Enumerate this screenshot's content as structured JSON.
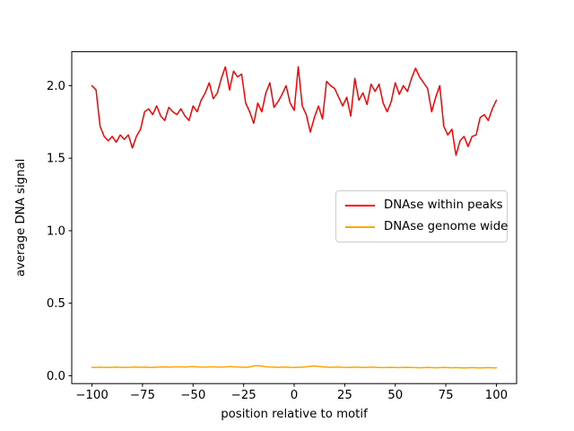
{
  "figure": {
    "background": "#ffffff"
  },
  "chart_data": {
    "type": "line",
    "title": "",
    "xlabel": "position relative to motif",
    "ylabel": "average DNA signal",
    "xlim": [
      -110,
      110
    ],
    "ylim": [
      -0.054,
      2.234
    ],
    "grid": false,
    "x_ticks": [
      {
        "v": -100,
        "label": "−100"
      },
      {
        "v": -75,
        "label": "−75"
      },
      {
        "v": -50,
        "label": "−50"
      },
      {
        "v": -25,
        "label": "−25"
      },
      {
        "v": 0,
        "label": "0"
      },
      {
        "v": 25,
        "label": "25"
      },
      {
        "v": 50,
        "label": "50"
      },
      {
        "v": 75,
        "label": "75"
      },
      {
        "v": 100,
        "label": "100"
      }
    ],
    "y_ticks": [
      {
        "v": 0.0,
        "label": "0.0"
      },
      {
        "v": 0.5,
        "label": "0.5"
      },
      {
        "v": 1.0,
        "label": "1.0"
      },
      {
        "v": 1.5,
        "label": "1.5"
      },
      {
        "v": 2.0,
        "label": "2.0"
      }
    ],
    "legend": {
      "position": "center right",
      "border_color": "#cccccc"
    },
    "x": [
      -100,
      -98,
      -96,
      -94,
      -92,
      -90,
      -88,
      -86,
      -84,
      -82,
      -80,
      -78,
      -76,
      -74,
      -72,
      -70,
      -68,
      -66,
      -64,
      -62,
      -60,
      -58,
      -56,
      -54,
      -52,
      -50,
      -48,
      -46,
      -44,
      -42,
      -40,
      -38,
      -36,
      -34,
      -32,
      -30,
      -28,
      -26,
      -24,
      -22,
      -20,
      -18,
      -16,
      -14,
      -12,
      -10,
      -8,
      -6,
      -4,
      -2,
      0,
      2,
      4,
      6,
      8,
      10,
      12,
      14,
      16,
      18,
      20,
      22,
      24,
      26,
      28,
      30,
      32,
      34,
      36,
      38,
      40,
      42,
      44,
      46,
      48,
      50,
      52,
      54,
      56,
      58,
      60,
      62,
      64,
      66,
      68,
      70,
      72,
      74,
      76,
      78,
      80,
      82,
      84,
      86,
      88,
      90,
      92,
      94,
      96,
      98,
      100
    ],
    "series": [
      {
        "name": "DNAse within peaks",
        "color": "#ff0000",
        "values": [
          2.0,
          1.97,
          1.72,
          1.65,
          1.62,
          1.65,
          1.61,
          1.66,
          1.63,
          1.66,
          1.57,
          1.65,
          1.7,
          1.82,
          1.84,
          1.8,
          1.86,
          1.79,
          1.76,
          1.85,
          1.82,
          1.8,
          1.84,
          1.79,
          1.76,
          1.86,
          1.82,
          1.9,
          1.95,
          2.02,
          1.91,
          1.95,
          2.05,
          2.13,
          1.97,
          2.1,
          2.06,
          2.08,
          1.88,
          1.82,
          1.74,
          1.88,
          1.82,
          1.95,
          2.02,
          1.85,
          1.89,
          1.94,
          2.0,
          1.88,
          1.83,
          2.13,
          1.86,
          1.8,
          1.68,
          1.78,
          1.86,
          1.77,
          2.03,
          2.0,
          1.98,
          1.92,
          1.86,
          1.92,
          1.79,
          2.05,
          1.9,
          1.95,
          1.87,
          2.01,
          1.96,
          2.01,
          1.88,
          1.82,
          1.89,
          2.02,
          1.94,
          2.0,
          1.96,
          2.05,
          2.12,
          2.06,
          2.02,
          1.98,
          1.82,
          1.92,
          2.0,
          1.72,
          1.66,
          1.7,
          1.52,
          1.62,
          1.65,
          1.58,
          1.65,
          1.66,
          1.78,
          1.8,
          1.76,
          1.84,
          1.9
        ]
      },
      {
        "name": "DNAse genome wide",
        "color": "#ffa500",
        "values": [
          0.058,
          0.057,
          0.059,
          0.058,
          0.057,
          0.058,
          0.059,
          0.058,
          0.057,
          0.058,
          0.059,
          0.06,
          0.058,
          0.059,
          0.058,
          0.057,
          0.059,
          0.06,
          0.061,
          0.059,
          0.06,
          0.062,
          0.061,
          0.06,
          0.062,
          0.063,
          0.061,
          0.06,
          0.059,
          0.061,
          0.062,
          0.06,
          0.059,
          0.061,
          0.063,
          0.062,
          0.06,
          0.059,
          0.058,
          0.06,
          0.068,
          0.07,
          0.066,
          0.062,
          0.06,
          0.059,
          0.058,
          0.059,
          0.06,
          0.058,
          0.057,
          0.058,
          0.059,
          0.062,
          0.065,
          0.068,
          0.064,
          0.061,
          0.059,
          0.058,
          0.059,
          0.06,
          0.058,
          0.057,
          0.058,
          0.059,
          0.058,
          0.057,
          0.058,
          0.059,
          0.058,
          0.057,
          0.056,
          0.057,
          0.058,
          0.057,
          0.056,
          0.057,
          0.058,
          0.057,
          0.056,
          0.055,
          0.056,
          0.057,
          0.056,
          0.055,
          0.056,
          0.057,
          0.056,
          0.055,
          0.056,
          0.055,
          0.054,
          0.055,
          0.056,
          0.055,
          0.054,
          0.055,
          0.056,
          0.055,
          0.055
        ]
      }
    ]
  }
}
